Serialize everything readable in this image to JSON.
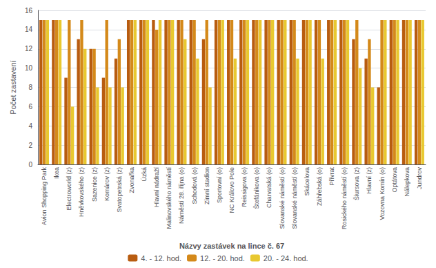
{
  "chart_data": {
    "type": "bar",
    "xlabel": "Názvy zastávek na lince č. 67",
    "ylabel": "Počet zastavení",
    "categories": [
      "Avion Shopping Park",
      "Ikea",
      "Electroworld (z)",
      "Hněvkovského (z)",
      "Sazenice (z)",
      "Komárov (z)",
      "Svatopetrská (z)",
      "Zvonařka",
      "Úzká",
      "Hlavní nádraží",
      "Malinovského náměstí",
      "Náměstí 28. října (o)",
      "Schodová (o)",
      "Zimní stadion",
      "Sportovní (o)",
      "NC Královo Pole",
      "Reissigova (o)",
      "Štefánikova (o)",
      "Charvatská (o)",
      "Slovanské náměstí (o)",
      "Slovanské náměstí (o)",
      "Skácelova",
      "Záhřebská (o)",
      "Přívrat",
      "Rosického náměstí (o)",
      "Šiursova (z)",
      "Hlavní (z)",
      "Vozovna Komín (o)",
      "Optátova",
      "Nálepkova",
      "Jundrov"
    ],
    "series": [
      {
        "name": "4. - 12. hod.",
        "color": "#B85C10",
        "values": [
          15,
          15,
          9,
          13,
          12,
          9,
          11,
          15,
          15,
          15,
          15,
          15,
          15,
          13,
          15,
          15,
          15,
          15,
          15,
          15,
          15,
          15,
          15,
          15,
          15,
          13,
          11,
          8,
          15,
          15,
          15
        ]
      },
      {
        "name": "12. - 20. hod.",
        "color": "#D4891A",
        "values": [
          15,
          15,
          15,
          15,
          12,
          15,
          13,
          15,
          15,
          14,
          15,
          15,
          15,
          15,
          15,
          15,
          15,
          15,
          15,
          15,
          15,
          15,
          15,
          15,
          15,
          15,
          13,
          15,
          15,
          15,
          15
        ]
      },
      {
        "name": "20. - 24. hod.",
        "color": "#E8C830",
        "values": [
          15,
          15,
          6,
          12,
          8,
          8,
          8,
          15,
          15,
          15,
          15,
          13,
          11,
          8,
          15,
          11,
          15,
          15,
          15,
          15,
          11,
          15,
          11,
          15,
          15,
          10,
          8,
          15,
          15,
          15,
          15
        ]
      }
    ],
    "ylim": [
      0,
      16
    ],
    "yticks": [
      0,
      2,
      4,
      6,
      8,
      10,
      12,
      14,
      16
    ],
    "grid": true,
    "legend": "bottom"
  }
}
